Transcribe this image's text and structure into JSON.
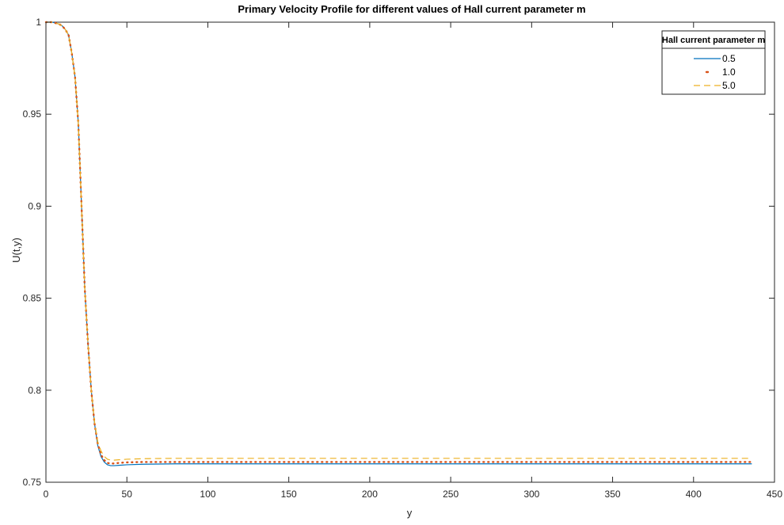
{
  "chart_data": {
    "type": "line",
    "title": "Primary Velocity Profile for different values of Hall current parameter m",
    "xlabel": "y",
    "ylabel": "U(t,y)",
    "xlim": [
      0,
      450
    ],
    "ylim": [
      0.75,
      1.0
    ],
    "x_ticks": [
      0,
      50,
      100,
      150,
      200,
      250,
      300,
      350,
      400,
      450
    ],
    "y_ticks": [
      0.75,
      0.8,
      0.85,
      0.9,
      0.95,
      1.0
    ],
    "x_tick_labels": [
      "0",
      "50",
      "100",
      "150",
      "200",
      "250",
      "300",
      "350",
      "400",
      "450"
    ],
    "y_tick_labels": [
      "0.75",
      "0.8",
      "0.85",
      "0.9",
      "0.95",
      "1"
    ],
    "grid": false,
    "legend": {
      "title": "Hall current parameter m",
      "position": "top-right"
    },
    "series": [
      {
        "name": "0.5",
        "color": "#0072BD",
        "style": "solid",
        "x": [
          0,
          4,
          8,
          10,
          12,
          14,
          16,
          18,
          20,
          22,
          24,
          26,
          28,
          30,
          32,
          34,
          36,
          38,
          40,
          42,
          45,
          50,
          60,
          80,
          100,
          150,
          200,
          250,
          300,
          350,
          400,
          436
        ],
        "y": [
          1.0,
          1.0,
          0.999,
          0.998,
          0.996,
          0.993,
          0.983,
          0.97,
          0.945,
          0.9,
          0.855,
          0.825,
          0.8,
          0.782,
          0.77,
          0.764,
          0.761,
          0.7595,
          0.759,
          0.759,
          0.7592,
          0.7595,
          0.7598,
          0.76,
          0.76,
          0.76,
          0.76,
          0.76,
          0.76,
          0.76,
          0.76,
          0.76
        ]
      },
      {
        "name": "1.0",
        "color": "#D95319",
        "style": "dotted",
        "x": [
          0,
          4,
          8,
          10,
          12,
          14,
          16,
          18,
          20,
          22,
          24,
          26,
          28,
          30,
          32,
          34,
          36,
          38,
          40,
          42,
          45,
          50,
          60,
          80,
          100,
          150,
          200,
          250,
          300,
          350,
          400,
          436
        ],
        "y": [
          1.0,
          1.0,
          0.999,
          0.998,
          0.996,
          0.993,
          0.983,
          0.97,
          0.945,
          0.9,
          0.855,
          0.825,
          0.8,
          0.782,
          0.771,
          0.765,
          0.762,
          0.7605,
          0.7602,
          0.7602,
          0.7605,
          0.7608,
          0.761,
          0.761,
          0.761,
          0.761,
          0.761,
          0.761,
          0.761,
          0.761,
          0.761,
          0.761
        ]
      },
      {
        "name": "5.0",
        "color": "#EDB120",
        "style": "dashed",
        "x": [
          0,
          4,
          8,
          10,
          12,
          14,
          16,
          18,
          20,
          22,
          24,
          26,
          28,
          30,
          32,
          34,
          36,
          38,
          40,
          42,
          45,
          50,
          60,
          80,
          100,
          150,
          200,
          250,
          300,
          350,
          400,
          436
        ],
        "y": [
          1.0,
          1.0,
          0.999,
          0.998,
          0.996,
          0.993,
          0.983,
          0.97,
          0.945,
          0.9,
          0.855,
          0.825,
          0.8,
          0.783,
          0.772,
          0.767,
          0.764,
          0.7625,
          0.762,
          0.762,
          0.7622,
          0.7625,
          0.7628,
          0.763,
          0.763,
          0.763,
          0.763,
          0.763,
          0.763,
          0.763,
          0.763,
          0.763
        ]
      }
    ]
  }
}
